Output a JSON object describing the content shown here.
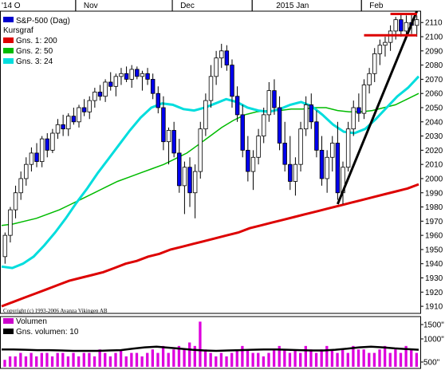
{
  "chart_data": {
    "type": "candlestick",
    "title": "S&P-500 (Dag)",
    "x_ticks": [
      "'14 O",
      "Nov",
      "Dec",
      "2015 Jan",
      "Feb"
    ],
    "y_ticks": [
      1910,
      1920,
      1930,
      1940,
      1950,
      1960,
      1970,
      1980,
      1990,
      2000,
      2010,
      2020,
      2030,
      2040,
      2050,
      2060,
      2070,
      2080,
      2090,
      2100,
      2110
    ],
    "ylim": [
      1905,
      2118
    ],
    "legend": [
      {
        "label": "S&P-500 (Dag)",
        "color": "#0000cc"
      },
      {
        "label": "Kursgraf",
        "color": null
      },
      {
        "label": "Gns. 1: 200",
        "color": "#dd0000"
      },
      {
        "label": "Gns. 2: 50",
        "color": "#00bb00"
      },
      {
        "label": "Gns. 3: 24",
        "color": "#00dddd"
      }
    ],
    "copyright": "Copyright (c) 1993-2006 Avanza Vikingen AB",
    "candles": [
      [
        1945,
        1962,
        1940,
        1960
      ],
      [
        1960,
        1980,
        1955,
        1978
      ],
      [
        1978,
        1995,
        1972,
        1990
      ],
      [
        1990,
        2005,
        1985,
        2000
      ],
      [
        2000,
        2015,
        1995,
        2010
      ],
      [
        2010,
        2022,
        2005,
        2018
      ],
      [
        2018,
        2025,
        2008,
        2012
      ],
      [
        2012,
        2030,
        2008,
        2028
      ],
      [
        2028,
        2032,
        2015,
        2020
      ],
      [
        2020,
        2035,
        2018,
        2032
      ],
      [
        2032,
        2042,
        2028,
        2038
      ],
      [
        2038,
        2045,
        2030,
        2035
      ],
      [
        2035,
        2046,
        2030,
        2044
      ],
      [
        2044,
        2050,
        2038,
        2040
      ],
      [
        2040,
        2052,
        2036,
        2050
      ],
      [
        2050,
        2056,
        2044,
        2047
      ],
      [
        2047,
        2058,
        2042,
        2055
      ],
      [
        2055,
        2064,
        2050,
        2061
      ],
      [
        2061,
        2066,
        2055,
        2058
      ],
      [
        2058,
        2070,
        2054,
        2068
      ],
      [
        2068,
        2075,
        2062,
        2065
      ],
      [
        2065,
        2074,
        2058,
        2072
      ],
      [
        2072,
        2078,
        2066,
        2074
      ],
      [
        2074,
        2079,
        2068,
        2070
      ],
      [
        2070,
        2080,
        2064,
        2077
      ],
      [
        2077,
        2079,
        2070,
        2072
      ],
      [
        2072,
        2076,
        2062,
        2074
      ],
      [
        2074,
        2078,
        2066,
        2070
      ],
      [
        2070,
        2074,
        2056,
        2060
      ],
      [
        2060,
        2065,
        2046,
        2050
      ],
      [
        2050,
        2058,
        2020,
        2026
      ],
      [
        2026,
        2036,
        2010,
        2034
      ],
      [
        2034,
        2040,
        2015,
        2018
      ],
      [
        2018,
        2028,
        1990,
        1995
      ],
      [
        1995,
        2012,
        1975,
        2008
      ],
      [
        2008,
        2015,
        1980,
        1990
      ],
      [
        1990,
        2010,
        1972,
        2005
      ],
      [
        2005,
        2040,
        2000,
        2035
      ],
      [
        2035,
        2060,
        2030,
        2055
      ],
      [
        2055,
        2080,
        2050,
        2072
      ],
      [
        2072,
        2090,
        2066,
        2085
      ],
      [
        2085,
        2095,
        2078,
        2090
      ],
      [
        2090,
        2094,
        2076,
        2080
      ],
      [
        2080,
        2084,
        2050,
        2058
      ],
      [
        2058,
        2065,
        2040,
        2045
      ],
      [
        2045,
        2052,
        2015,
        2020
      ],
      [
        2020,
        2030,
        1998,
        2005
      ],
      [
        2005,
        2020,
        1992,
        2015
      ],
      [
        2015,
        2035,
        2010,
        2030
      ],
      [
        2030,
        2050,
        2025,
        2045
      ],
      [
        2045,
        2068,
        2040,
        2062
      ],
      [
        2062,
        2070,
        2045,
        2050
      ],
      [
        2050,
        2058,
        2020,
        2025
      ],
      [
        2025,
        2040,
        2005,
        2010
      ],
      [
        2010,
        2030,
        1992,
        1998
      ],
      [
        1998,
        2015,
        1988,
        2010
      ],
      [
        2010,
        2040,
        2005,
        2035
      ],
      [
        2035,
        2058,
        2030,
        2052
      ],
      [
        2052,
        2060,
        2035,
        2040
      ],
      [
        2040,
        2048,
        2015,
        2020
      ],
      [
        2020,
        2030,
        1995,
        2000
      ],
      [
        2000,
        2020,
        1990,
        2015
      ],
      [
        2015,
        2030,
        2005,
        2025
      ],
      [
        2025,
        2040,
        1985,
        1990
      ],
      [
        1990,
        2012,
        1982,
        2008
      ],
      [
        2008,
        2040,
        2005,
        2035
      ],
      [
        2035,
        2055,
        2030,
        2050
      ],
      [
        2050,
        2060,
        2040,
        2046
      ],
      [
        2046,
        2070,
        2042,
        2066
      ],
      [
        2066,
        2078,
        2060,
        2074
      ],
      [
        2074,
        2092,
        2068,
        2088
      ],
      [
        2088,
        2098,
        2080,
        2094
      ],
      [
        2094,
        2100,
        2086,
        2096
      ],
      [
        2096,
        2108,
        2090,
        2104
      ],
      [
        2104,
        2114,
        2098,
        2112
      ],
      [
        2112,
        2116,
        2100,
        2104
      ],
      [
        2104,
        2115,
        2098,
        2110
      ],
      [
        2110,
        2116,
        2102,
        2108
      ],
      [
        2108,
        2115,
        2100,
        2112
      ]
    ],
    "ma200": [
      1910,
      1913,
      1916,
      1919,
      1922,
      1925,
      1928,
      1930,
      1932,
      1934,
      1937,
      1940,
      1942,
      1945,
      1947,
      1950,
      1952,
      1954,
      1956,
      1958,
      1960,
      1962,
      1965,
      1967,
      1969,
      1971,
      1973,
      1975,
      1977,
      1979,
      1981,
      1983,
      1985,
      1987,
      1989,
      1991,
      1993,
      1996
    ],
    "ma50": [
      1967,
      1968,
      1970,
      1972,
      1975,
      1978,
      1982,
      1986,
      1990,
      1994,
      1998,
      2001,
      2004,
      2007,
      2010,
      2014,
      2018,
      2024,
      2030,
      2036,
      2041,
      2045,
      2047,
      2048,
      2048,
      2049,
      2049,
      2050,
      2050,
      2048,
      2047,
      2047,
      2048,
      2050,
      2052,
      2056,
      2060
    ],
    "ma24": [
      1938,
      1937,
      1940,
      1945,
      1953,
      1962,
      1972,
      1983,
      1993,
      2004,
      2014,
      2024,
      2034,
      2043,
      2050,
      2053,
      2052,
      2049,
      2048,
      2050,
      2053,
      2056,
      2054,
      2050,
      2048,
      2047,
      2049,
      2052,
      2054,
      2051,
      2045,
      2038,
      2033,
      2032,
      2035,
      2042,
      2050,
      2058,
      2064,
      2072
    ],
    "volume": [
      2,
      3,
      3,
      4,
      3,
      4,
      3,
      4,
      4,
      3,
      4,
      4,
      3,
      4,
      3,
      4,
      4,
      3,
      5,
      4,
      3,
      4,
      5,
      3,
      4,
      4,
      3,
      4,
      5,
      4,
      6,
      4,
      5,
      6,
      5,
      7,
      6,
      13,
      5,
      4,
      3,
      4,
      3,
      4,
      5,
      6,
      5,
      4,
      4,
      3,
      4,
      5,
      6,
      5,
      4,
      5,
      4,
      6,
      5,
      4,
      5,
      6,
      5,
      4,
      5,
      4,
      6,
      5,
      5,
      4,
      4,
      5,
      6,
      4,
      5,
      4,
      6,
      5,
      4
    ],
    "volume_ma": [
      5.0,
      5.0,
      4.9,
      4.8,
      4.8,
      4.7,
      4.6,
      4.6,
      4.6,
      4.7,
      4.8,
      5.2,
      5.6,
      5.8,
      5.5,
      5.2,
      4.9,
      4.7,
      4.6,
      4.7,
      4.8,
      4.9,
      5.0,
      5.0,
      4.9,
      4.8,
      4.7,
      4.7,
      4.9,
      5.2,
      5.6,
      5.8,
      5.6,
      5.3,
      5.1,
      4.9
    ],
    "volume_ticks": [
      "1500\"",
      "1000\"",
      "500\""
    ],
    "volume_legend": [
      {
        "label": "Volumen",
        "color": "#cc00cc"
      },
      {
        "label": "Gns. volumen: 10",
        "color": "#000000"
      }
    ],
    "annotations": {
      "support_line": {
        "label": "",
        "from": [
          2200,
          2100
        ],
        "to": [
          2200,
          2100
        ]
      },
      "trend_line": {
        "from_value": 1982,
        "to_value": 2118
      }
    }
  }
}
